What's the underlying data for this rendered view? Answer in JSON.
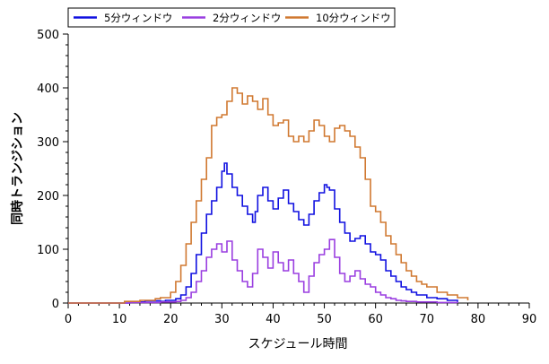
{
  "chart_data": {
    "type": "line",
    "xlabel": "スケジュール時間",
    "ylabel": "同時トランジション",
    "xlim": [
      0,
      90
    ],
    "ylim": [
      0,
      500
    ],
    "xticks": [
      0,
      10,
      20,
      30,
      40,
      50,
      60,
      70,
      80,
      90
    ],
    "yticks": [
      0,
      100,
      200,
      300,
      400,
      500
    ],
    "legend_position": "top",
    "grid": false,
    "series": [
      {
        "name": "5分ウィンドウ",
        "color": "#1010e0",
        "x": [
          0,
          12,
          15,
          18,
          19,
          21,
          22,
          23,
          24,
          25,
          26,
          27,
          28,
          29,
          30,
          30.5,
          31,
          32,
          33,
          34,
          35,
          36,
          36.5,
          37,
          38,
          39,
          40,
          41,
          42,
          43,
          44,
          45,
          46,
          47,
          48,
          49,
          50,
          50.5,
          51,
          52,
          53,
          54,
          55,
          56,
          57,
          58,
          59,
          60,
          61,
          62,
          63,
          64,
          65,
          66,
          67,
          68,
          70,
          72,
          74,
          76
        ],
        "y": [
          0,
          2,
          4,
          3,
          5,
          8,
          15,
          30,
          55,
          90,
          130,
          165,
          190,
          215,
          245,
          260,
          240,
          215,
          200,
          180,
          165,
          150,
          170,
          200,
          215,
          190,
          175,
          195,
          210,
          185,
          170,
          155,
          145,
          165,
          190,
          205,
          220,
          215,
          210,
          175,
          150,
          130,
          115,
          120,
          125,
          110,
          95,
          90,
          80,
          60,
          50,
          40,
          30,
          25,
          20,
          15,
          10,
          8,
          5,
          2
        ]
      },
      {
        "name": "2分ウィンドウ",
        "color": "#9a3ee0",
        "x": [
          0,
          12,
          18,
          21,
          22,
          23,
          24,
          25,
          26,
          27,
          28,
          29,
          30,
          31,
          32,
          33,
          34,
          35,
          36,
          37,
          38,
          39,
          40,
          41,
          42,
          43,
          44,
          45,
          46,
          47,
          48,
          49,
          50,
          51,
          52,
          53,
          54,
          55,
          56,
          57,
          58,
          59,
          60,
          61,
          62,
          63,
          64,
          65,
          66,
          68,
          70,
          72,
          74,
          76
        ],
        "y": [
          0,
          1,
          2,
          3,
          5,
          10,
          20,
          40,
          60,
          85,
          100,
          110,
          95,
          115,
          80,
          60,
          40,
          30,
          55,
          100,
          85,
          65,
          95,
          75,
          60,
          80,
          55,
          40,
          20,
          50,
          75,
          90,
          100,
          118,
          85,
          55,
          40,
          50,
          60,
          45,
          35,
          30,
          20,
          15,
          10,
          8,
          5,
          4,
          3,
          2,
          2,
          1,
          1,
          0
        ]
      },
      {
        "name": "10分ウィンドウ",
        "color": "#d07830",
        "x": [
          0,
          11,
          14,
          17,
          18,
          20,
          21,
          22,
          23,
          24,
          25,
          26,
          27,
          28,
          29,
          30,
          31,
          32,
          33,
          34,
          35,
          36,
          37,
          38,
          39,
          40,
          41,
          42,
          43,
          44,
          45,
          46,
          47,
          48,
          49,
          50,
          51,
          52,
          53,
          54,
          55,
          56,
          57,
          58,
          59,
          60,
          61,
          62,
          63,
          64,
          65,
          66,
          67,
          68,
          69,
          70,
          72,
          74,
          76,
          78
        ],
        "y": [
          0,
          3,
          5,
          8,
          10,
          20,
          40,
          70,
          110,
          150,
          190,
          230,
          270,
          330,
          345,
          350,
          375,
          400,
          390,
          370,
          385,
          375,
          360,
          380,
          350,
          330,
          335,
          340,
          310,
          300,
          310,
          300,
          320,
          340,
          330,
          310,
          300,
          325,
          330,
          320,
          310,
          290,
          270,
          230,
          180,
          170,
          150,
          125,
          110,
          90,
          75,
          60,
          50,
          40,
          35,
          30,
          20,
          15,
          10,
          5
        ]
      }
    ]
  }
}
